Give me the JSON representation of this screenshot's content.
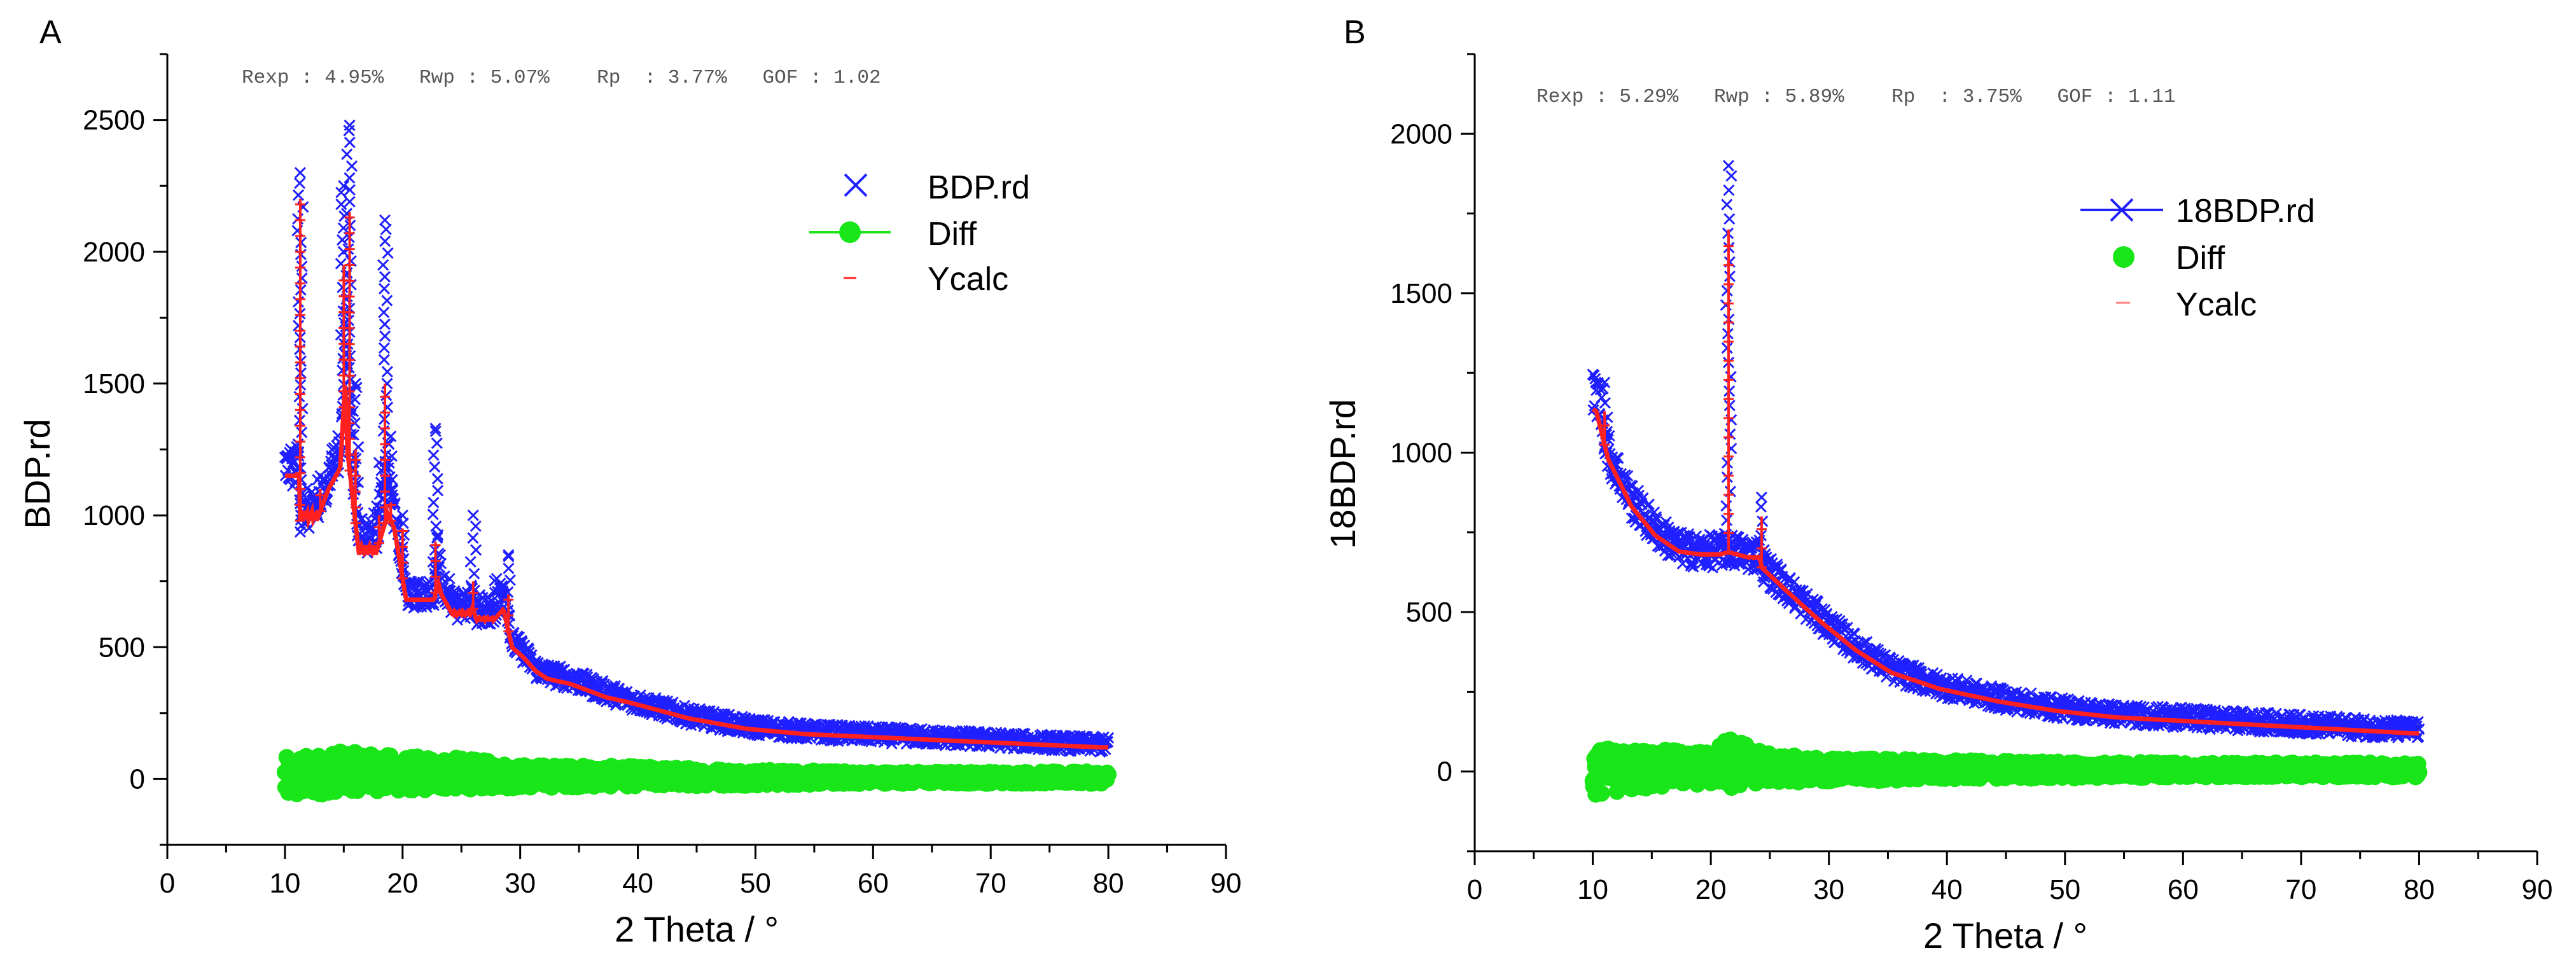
{
  "figure": {
    "colors": {
      "observed": "#1f1fff",
      "difference": "#19e619",
      "calculated": "#ff2020",
      "axis": "#000000"
    }
  },
  "chart_data": [
    {
      "panel": "A",
      "type": "scatter",
      "stats_text": "Rexp : 4.95%   Rwp : 5.07%    Rp  : 3.77%   GOF : 1.02",
      "xlabel": "2 Theta / °",
      "ylabel": "BDP.rd",
      "xlim": [
        0,
        90
      ],
      "ylim": [
        -250,
        2750
      ],
      "xticks": [
        0,
        10,
        20,
        30,
        40,
        50,
        60,
        70,
        80,
        90
      ],
      "yticks": [
        0,
        500,
        1000,
        1500,
        2000,
        2500
      ],
      "legend": [
        {
          "label": "BDP.rd",
          "marker": "cross",
          "color": "#1f1fff"
        },
        {
          "label": "Diff",
          "marker": "line-circle",
          "color": "#19e619"
        },
        {
          "label": "Ycalc",
          "marker": "dash",
          "color": "#ff2020"
        }
      ],
      "legend_position": "top-right",
      "series": [
        {
          "name": "BDP.rd",
          "x": [
            10,
            11,
            11.3,
            12,
            13,
            14,
            15,
            15.5,
            16,
            17,
            18,
            18.5,
            19,
            20,
            21,
            22,
            22.8,
            24,
            25,
            26,
            27,
            28,
            29,
            30,
            31,
            32,
            33,
            35,
            38,
            40,
            45,
            50,
            55,
            60,
            65,
            70,
            75,
            80
          ],
          "y": [
            1180,
            1230,
            2300,
            1000,
            1150,
            1250,
            2250,
            2480,
            1500,
            900,
            1200,
            2120,
            1300,
            1000,
            700,
            700,
            1330,
            760,
            640,
            1000,
            620,
            760,
            850,
            520,
            480,
            420,
            400,
            380,
            330,
            300,
            240,
            200,
            180,
            170,
            160,
            150,
            140,
            130
          ]
        },
        {
          "name": "Ycalc",
          "x": [
            10,
            11,
            11.3,
            12,
            13,
            14,
            15,
            15.5,
            16,
            17,
            18,
            18.5,
            19,
            20,
            21,
            22,
            22.8,
            24,
            25,
            26,
            27,
            28,
            29,
            30,
            31,
            32,
            33,
            35,
            38,
            40,
            45,
            50,
            55,
            60,
            65,
            70,
            75,
            80
          ],
          "y": [
            1150,
            1150,
            2200,
            980,
            1100,
            1180,
            1950,
            2150,
            1250,
            850,
            1000,
            1500,
            1050,
            950,
            680,
            680,
            900,
            700,
            620,
            750,
            600,
            650,
            700,
            500,
            460,
            410,
            380,
            360,
            310,
            290,
            230,
            190,
            170,
            160,
            150,
            140,
            130,
            120
          ]
        },
        {
          "name": "Diff",
          "x": [
            10,
            15,
            20,
            25,
            30,
            40,
            50,
            60,
            70,
            80
          ],
          "y": [
            0,
            30,
            20,
            20,
            10,
            10,
            5,
            5,
            5,
            5
          ],
          "spread": [
            110,
            100,
            90,
            80,
            60,
            50,
            40,
            30,
            30,
            30
          ]
        }
      ]
    },
    {
      "panel": "B",
      "type": "scatter",
      "stats_text": "Rexp : 5.29%   Rwp : 5.89%    Rp  : 3.75%   GOF : 1.11",
      "xlabel": "2 Theta / °",
      "ylabel": "18BDP.rd",
      "xlim": [
        0,
        90
      ],
      "ylim": [
        -250,
        2250
      ],
      "xticks": [
        0,
        10,
        20,
        30,
        40,
        50,
        60,
        70,
        80,
        90
      ],
      "yticks": [
        0,
        500,
        1000,
        1500,
        2000
      ],
      "legend": [
        {
          "label": "18BDP.rd",
          "marker": "line-cross",
          "color": "#1f1fff"
        },
        {
          "label": "Diff",
          "marker": "circle",
          "color": "#19e619"
        },
        {
          "label": "Ycalc",
          "marker": "dash",
          "color": "#ff2020"
        }
      ],
      "legend_position": "top-right",
      "series": [
        {
          "name": "18BDP.rd",
          "x": [
            10,
            11,
            12,
            14,
            16,
            18,
            20,
            21,
            21.5,
            22,
            23,
            24,
            24.3,
            25,
            27,
            30,
            33,
            36,
            40,
            45,
            50,
            55,
            60,
            65,
            70,
            75,
            80
          ],
          "y": [
            1180,
            1220,
            1000,
            850,
            760,
            700,
            690,
            700,
            1900,
            700,
            690,
            680,
            860,
            650,
            580,
            480,
            390,
            320,
            270,
            230,
            200,
            180,
            170,
            160,
            150,
            140,
            130
          ]
        },
        {
          "name": "Ycalc",
          "x": [
            10,
            11,
            12,
            14,
            16,
            18,
            20,
            21,
            21.5,
            22,
            23,
            24,
            24.3,
            25,
            27,
            30,
            33,
            36,
            40,
            45,
            50,
            55,
            60,
            65,
            70,
            75,
            80
          ],
          "y": [
            1150,
            1130,
            980,
            830,
            740,
            690,
            680,
            690,
            1700,
            690,
            680,
            670,
            800,
            640,
            570,
            470,
            380,
            310,
            260,
            220,
            190,
            170,
            160,
            150,
            140,
            130,
            120
          ]
        },
        {
          "name": "Diff",
          "x": [
            10,
            15,
            20,
            21.5,
            25,
            30,
            40,
            50,
            60,
            70,
            80
          ],
          "y": [
            0,
            10,
            10,
            30,
            10,
            5,
            5,
            5,
            5,
            5,
            5
          ],
          "spread": [
            100,
            80,
            70,
            110,
            60,
            50,
            40,
            35,
            30,
            30,
            30
          ]
        }
      ]
    }
  ]
}
